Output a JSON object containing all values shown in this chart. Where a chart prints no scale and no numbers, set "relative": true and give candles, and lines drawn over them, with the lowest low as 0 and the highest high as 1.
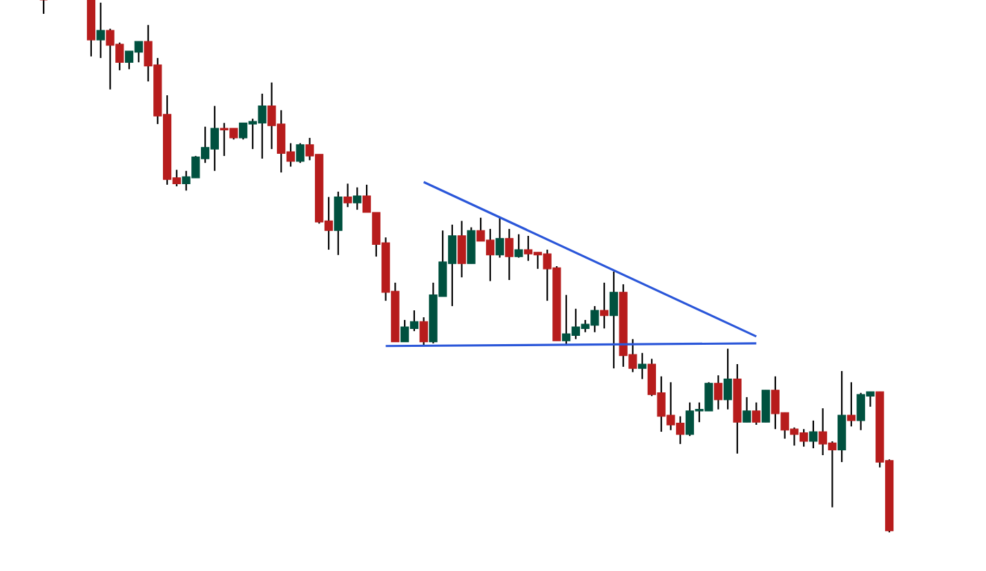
{
  "chart_data": {
    "type": "candlestick",
    "relative": true,
    "categories": [
      null,
      null,
      null,
      null,
      null,
      null,
      null,
      null,
      null,
      null,
      null,
      null,
      null,
      null,
      null,
      null,
      null,
      null,
      null,
      null,
      null,
      null,
      null,
      null,
      null,
      null,
      null,
      null,
      null,
      null,
      null,
      null,
      null,
      null,
      null,
      null,
      null,
      null,
      null,
      null,
      null,
      null,
      null,
      null,
      null,
      null,
      null,
      null,
      null,
      null,
      null,
      null,
      null,
      null,
      null,
      null,
      null,
      null,
      null,
      null,
      null,
      null,
      null,
      null,
      null,
      null,
      null,
      null,
      null,
      null,
      null,
      null,
      null,
      null,
      null,
      null,
      null,
      null,
      null,
      null,
      null,
      null,
      null,
      null,
      null,
      null,
      null,
      null,
      null,
      null
    ],
    "ohlc": [
      [
        1.0,
        1.0,
        0.974,
        1.0
      ],
      null,
      null,
      null,
      null,
      [
        1.0,
        1.0,
        0.894,
        0.925
      ],
      [
        0.925,
        0.995,
        0.891,
        0.943
      ],
      [
        0.943,
        0.946,
        0.832,
        0.915
      ],
      [
        0.917,
        0.92,
        0.868,
        0.883
      ],
      [
        0.883,
        0.904,
        0.87,
        0.904
      ],
      [
        0.902,
        0.922,
        0.883,
        0.922
      ],
      [
        0.922,
        0.953,
        0.847,
        0.876
      ],
      [
        0.878,
        0.891,
        0.767,
        0.782
      ],
      [
        0.785,
        0.821,
        0.653,
        0.663
      ],
      [
        0.666,
        0.681,
        0.65,
        0.655
      ],
      [
        0.655,
        0.679,
        0.642,
        0.668
      ],
      [
        0.666,
        0.707,
        0.666,
        0.705
      ],
      [
        0.702,
        0.762,
        0.694,
        0.723
      ],
      [
        0.72,
        0.801,
        0.679,
        0.759
      ],
      [
        0.759,
        0.769,
        0.707,
        0.756
      ],
      [
        0.759,
        0.759,
        0.738,
        0.741
      ],
      [
        0.741,
        0.769,
        0.738,
        0.769
      ],
      [
        0.767,
        0.777,
        0.72,
        0.772
      ],
      [
        0.769,
        0.824,
        0.702,
        0.801
      ],
      [
        0.801,
        0.845,
        0.72,
        0.764
      ],
      [
        0.767,
        0.793,
        0.676,
        0.712
      ],
      [
        0.715,
        0.731,
        0.687,
        0.697
      ],
      [
        0.697,
        0.731,
        0.694,
        0.728
      ],
      [
        0.728,
        0.741,
        0.699,
        0.707
      ],
      [
        0.71,
        0.71,
        0.58,
        0.583
      ],
      [
        0.585,
        0.63,
        0.531,
        0.567
      ],
      [
        0.567,
        0.64,
        0.521,
        0.63
      ],
      [
        0.63,
        0.655,
        0.611,
        0.619
      ],
      [
        0.619,
        0.648,
        0.606,
        0.632
      ],
      [
        0.632,
        0.653,
        0.601,
        0.601
      ],
      [
        0.601,
        0.601,
        0.518,
        0.541
      ],
      [
        0.544,
        0.554,
        0.435,
        0.451
      ],
      [
        0.453,
        0.469,
        0.358,
        0.358
      ],
      [
        0.358,
        0.399,
        0.358,
        0.386
      ],
      [
        0.383,
        0.417,
        0.378,
        0.396
      ],
      [
        0.396,
        0.404,
        0.352,
        0.358
      ],
      [
        0.358,
        0.469,
        0.355,
        0.446
      ],
      [
        0.443,
        0.567,
        0.443,
        0.508
      ],
      [
        0.505,
        0.578,
        0.425,
        0.557
      ],
      [
        0.557,
        0.585,
        0.479,
        0.505
      ],
      [
        0.505,
        0.573,
        0.505,
        0.567
      ],
      [
        0.567,
        0.591,
        0.547,
        0.547
      ],
      [
        0.549,
        0.57,
        0.472,
        0.521
      ],
      [
        0.521,
        0.593,
        0.516,
        0.552
      ],
      [
        0.552,
        0.57,
        0.474,
        0.518
      ],
      [
        0.518,
        0.56,
        0.516,
        0.531
      ],
      [
        0.531,
        0.557,
        0.51,
        0.523
      ],
      [
        0.526,
        0.526,
        0.495,
        0.521
      ],
      [
        0.523,
        0.531,
        0.435,
        0.495
      ],
      [
        0.497,
        0.5,
        0.36,
        0.36
      ],
      [
        0.36,
        0.446,
        0.352,
        0.373
      ],
      [
        0.37,
        0.42,
        0.363,
        0.386
      ],
      [
        0.383,
        0.399,
        0.376,
        0.391
      ],
      [
        0.389,
        0.425,
        0.376,
        0.417
      ],
      [
        0.417,
        0.469,
        0.383,
        0.407
      ],
      [
        0.407,
        0.49,
        0.308,
        0.451
      ],
      [
        0.451,
        0.466,
        0.311,
        0.332
      ],
      [
        0.334,
        0.363,
        0.301,
        0.308
      ],
      [
        0.308,
        0.337,
        0.288,
        0.316
      ],
      [
        0.316,
        0.326,
        0.256,
        0.259
      ],
      [
        0.262,
        0.293,
        0.189,
        0.218
      ],
      [
        0.22,
        0.282,
        0.192,
        0.202
      ],
      [
        0.205,
        0.218,
        0.166,
        0.184
      ],
      [
        0.184,
        0.244,
        0.181,
        0.228
      ],
      [
        0.228,
        0.244,
        0.207,
        0.231
      ],
      [
        0.228,
        0.282,
        0.228,
        0.28
      ],
      [
        0.28,
        0.295,
        0.231,
        0.249
      ],
      [
        0.249,
        0.345,
        0.231,
        0.288
      ],
      [
        0.288,
        0.316,
        0.148,
        0.207
      ],
      [
        0.207,
        0.254,
        0.207,
        0.228
      ],
      [
        0.228,
        0.244,
        0.202,
        0.207
      ],
      [
        0.207,
        0.267,
        0.207,
        0.267
      ],
      [
        0.267,
        0.293,
        0.194,
        0.223
      ],
      [
        0.225,
        0.225,
        0.176,
        0.192
      ],
      [
        0.194,
        0.197,
        0.163,
        0.184
      ],
      [
        0.187,
        0.194,
        0.161,
        0.171
      ],
      [
        0.171,
        0.21,
        0.158,
        0.189
      ],
      [
        0.189,
        0.233,
        0.145,
        0.166
      ],
      [
        0.168,
        0.171,
        0.047,
        0.155
      ],
      [
        0.155,
        0.303,
        0.132,
        0.22
      ],
      [
        0.22,
        0.282,
        0.199,
        0.21
      ],
      [
        0.21,
        0.262,
        0.192,
        0.259
      ],
      [
        0.256,
        0.264,
        0.236,
        0.264
      ],
      [
        0.264,
        0.264,
        0.122,
        0.132
      ],
      [
        0.135,
        0.137,
        0.0,
        0.003
      ]
    ],
    "colors": [
      "#b71c1c",
      null,
      null,
      null,
      null,
      "#b71c1c",
      "#00513f",
      "#b71c1c",
      "#b71c1c",
      "#00513f",
      "#00513f",
      "#b71c1c",
      "#b71c1c",
      "#b71c1c",
      "#b71c1c",
      "#00513f",
      "#00513f",
      "#00513f",
      "#00513f",
      "#b71c1c",
      "#b71c1c",
      "#00513f",
      "#00513f",
      "#00513f",
      "#b71c1c",
      "#b71c1c",
      "#b71c1c",
      "#00513f",
      "#b71c1c",
      "#b71c1c",
      "#b71c1c",
      "#00513f",
      "#b71c1c",
      "#00513f",
      "#b71c1c",
      "#b71c1c",
      "#b71c1c",
      "#b71c1c",
      "#00513f",
      "#00513f",
      "#b71c1c",
      "#00513f",
      "#00513f",
      "#00513f",
      "#b71c1c",
      "#00513f",
      "#b71c1c",
      "#b71c1c",
      "#00513f",
      "#b71c1c",
      "#00513f",
      "#b71c1c",
      "#b71c1c",
      "#b71c1c",
      "#b71c1c",
      "#00513f",
      "#00513f",
      "#00513f",
      "#00513f",
      "#b71c1c",
      "#00513f",
      "#b71c1c",
      "#b71c1c",
      "#00513f",
      "#b71c1c",
      "#b71c1c",
      "#b71c1c",
      "#b71c1c",
      "#00513f",
      "#00513f",
      "#00513f",
      "#b71c1c",
      "#00513f",
      "#b71c1c",
      "#00513f",
      "#b71c1c",
      "#00513f",
      "#b71c1c",
      "#b71c1c",
      "#b71c1c",
      "#b71c1c",
      "#00513f",
      "#b71c1c",
      "#b71c1c",
      "#00513f",
      "#b71c1c",
      "#00513f",
      "#00513f",
      "#b71c1c",
      "#b71c1c"
    ],
    "series": [
      {
        "type": "line",
        "color": "#2b57d9",
        "values": [
          null,
          null,
          null,
          null,
          null,
          null,
          null,
          null,
          null,
          null,
          null,
          null,
          null,
          null,
          null,
          null,
          null,
          null,
          null,
          null,
          null,
          null,
          null,
          null,
          null,
          null,
          null,
          null,
          null,
          null,
          null,
          null,
          null,
          null,
          null,
          null,
          null,
          null,
          null,
          null,
          0.658,
          null,
          null,
          null,
          null,
          null,
          null,
          null,
          null,
          null,
          null,
          null,
          null,
          null,
          null,
          null,
          null,
          null,
          null,
          null,
          null,
          null,
          null,
          null,
          null,
          null,
          null,
          null,
          null,
          null,
          null,
          null,
          null,
          null,
          null,
          0.368,
          null,
          null,
          null,
          null,
          null,
          null,
          null,
          null,
          null,
          null,
          null,
          null,
          null,
          null
        ]
      },
      {
        "type": "line",
        "color": "#2b57d9",
        "values": [
          null,
          null,
          null,
          null,
          null,
          null,
          null,
          null,
          null,
          null,
          null,
          null,
          null,
          null,
          null,
          null,
          null,
          null,
          null,
          null,
          null,
          null,
          null,
          null,
          null,
          null,
          null,
          null,
          null,
          null,
          null,
          null,
          null,
          null,
          null,
          null,
          0.35,
          null,
          null,
          null,
          null,
          null,
          null,
          null,
          null,
          null,
          null,
          null,
          null,
          null,
          null,
          null,
          null,
          null,
          null,
          null,
          null,
          null,
          null,
          null,
          null,
          null,
          null,
          null,
          null,
          null,
          null,
          null,
          null,
          null,
          null,
          null,
          null,
          null,
          null,
          0.355,
          null,
          null,
          null,
          null,
          null,
          null,
          null,
          null,
          null,
          null,
          null,
          null,
          null,
          null
        ]
      }
    ]
  }
}
